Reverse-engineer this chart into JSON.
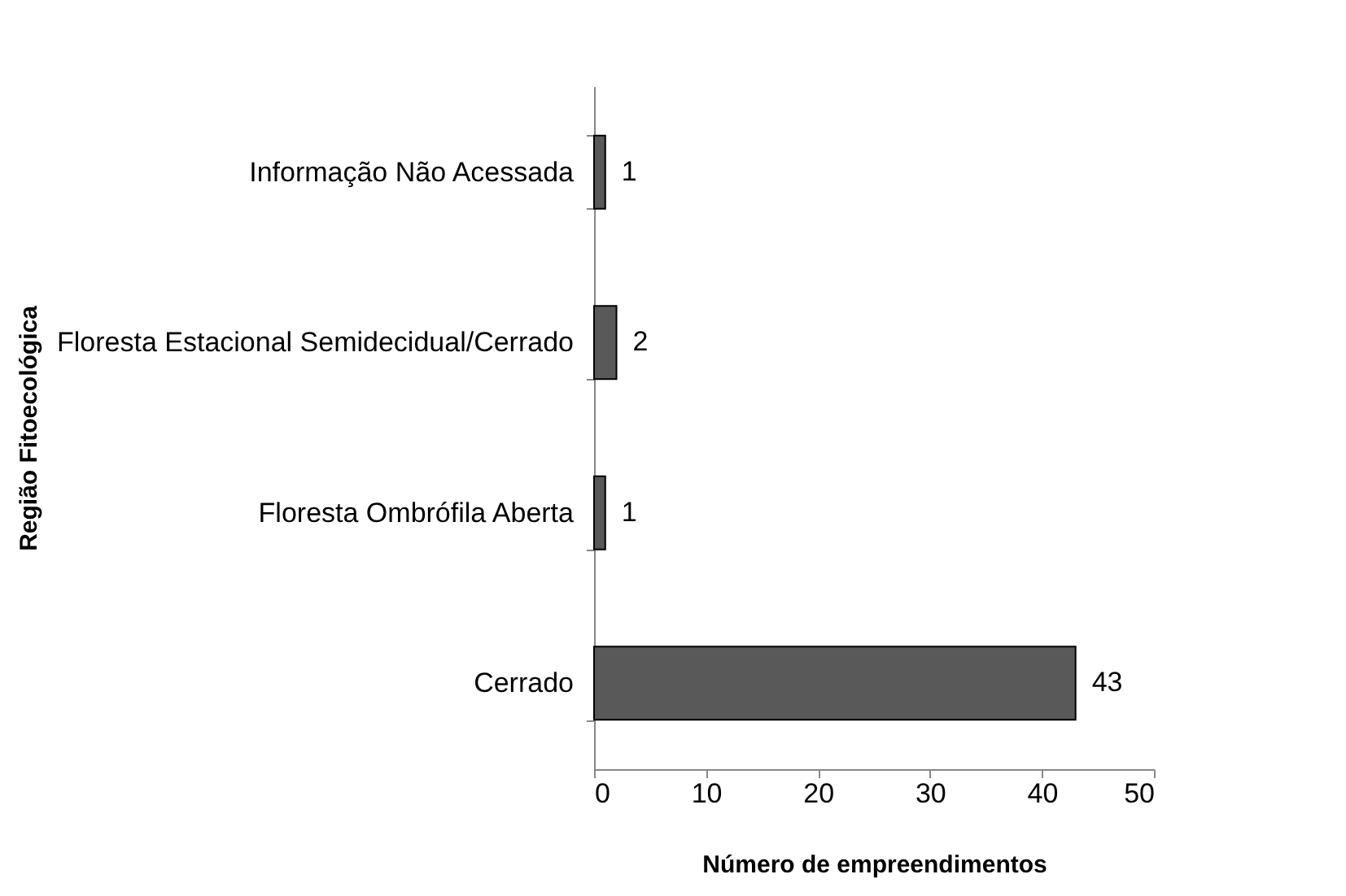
{
  "chart_data": {
    "type": "bar",
    "orientation": "horizontal",
    "xlabel": "Número de empreendimentos",
    "ylabel": "Região Fitoecológica",
    "categories": [
      "Informação Não Acessada",
      "Floresta Estacional Semidecidual/Cerrado",
      "Floresta Ombrófila Aberta",
      "Cerrado"
    ],
    "values": [
      1,
      2,
      1,
      43
    ],
    "color": "#595959",
    "xlim": [
      0,
      50
    ],
    "xticks": [
      0,
      10,
      20,
      30,
      40,
      50
    ],
    "data_labels": true,
    "grid": false
  }
}
